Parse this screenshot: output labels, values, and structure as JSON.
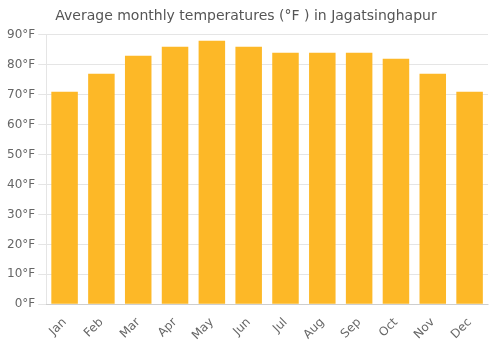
{
  "chart_data": {
    "type": "bar",
    "title": "Average monthly temperatures (°F ) in Jagatsinghapur",
    "categories": [
      "Jan",
      "Feb",
      "Mar",
      "Apr",
      "May",
      "Jun",
      "Jul",
      "Aug",
      "Sep",
      "Oct",
      "Nov",
      "Dec"
    ],
    "values": [
      71,
      77,
      83,
      86,
      88,
      86,
      84,
      84,
      84,
      82,
      77,
      71
    ],
    "color": "#FDB827",
    "ylim": [
      0,
      90
    ],
    "yticks": [
      {
        "value": 0,
        "label": "0°F"
      },
      {
        "value": 10,
        "label": "10°F"
      },
      {
        "value": 20,
        "label": "20°F"
      },
      {
        "value": 30,
        "label": "30°F"
      },
      {
        "value": 40,
        "label": "40°F"
      },
      {
        "value": 50,
        "label": "50°F"
      },
      {
        "value": 60,
        "label": "60°F"
      },
      {
        "value": 70,
        "label": "70°F"
      },
      {
        "value": 80,
        "label": "80°F"
      },
      {
        "value": 90,
        "label": "90°F"
      }
    ],
    "grid": true
  }
}
